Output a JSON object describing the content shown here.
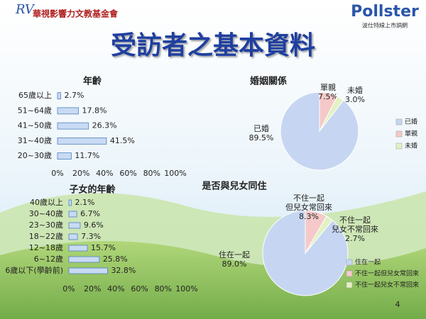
{
  "header": {
    "org_name": "華視影響力文教基金會",
    "brand": "Pollster",
    "brand_sub": "波仕特線上市調網",
    "title": "受訪者之基本資料",
    "page_number": "4"
  },
  "chart_data": [
    {
      "type": "hbar",
      "title": "年齡",
      "categories": [
        "65歲以上",
        "51~64歲",
        "41~50歲",
        "31~40歲",
        "20~30歲"
      ],
      "values": [
        2.7,
        17.8,
        26.3,
        41.5,
        11.7
      ],
      "value_labels": [
        "2.7%",
        "17.8%",
        "26.3%",
        "41.5%",
        "11.7%"
      ],
      "xlim": [
        0,
        100
      ],
      "xticks": [
        {
          "value": 0,
          "label": "0%"
        },
        {
          "value": 20,
          "label": "20%"
        },
        {
          "value": 40,
          "label": "40%"
        },
        {
          "value": 60,
          "label": "60%"
        },
        {
          "value": 80,
          "label": "80%"
        },
        {
          "value": 100,
          "label": "100%"
        }
      ],
      "color": "#c9daf4"
    },
    {
      "type": "hbar",
      "title": "子女的年齡",
      "categories": [
        "40歲以上",
        "30~40歲",
        "23~30歲",
        "18~22歲",
        "12~18歲",
        "6~12歲",
        "6歲以下(學齡前)"
      ],
      "values": [
        2.1,
        6.7,
        9.6,
        7.3,
        15.7,
        25.8,
        32.8
      ],
      "value_labels": [
        "2.1%",
        "6.7%",
        "9.6%",
        "7.3%",
        "15.7%",
        "25.8%",
        "32.8%"
      ],
      "xlim": [
        0,
        100
      ],
      "xticks": [
        {
          "value": 0,
          "label": "0%"
        },
        {
          "value": 20,
          "label": "20%"
        },
        {
          "value": 40,
          "label": "40%"
        },
        {
          "value": 60,
          "label": "60%"
        },
        {
          "value": 80,
          "label": "80%"
        },
        {
          "value": 100,
          "label": "100%"
        }
      ],
      "color": "#c9daf4"
    },
    {
      "type": "pie",
      "title": "婚姻關係",
      "categories": [
        "已婚",
        "單親",
        "未婚"
      ],
      "values": [
        89.5,
        7.5,
        3.0
      ],
      "value_labels": [
        "89.5%",
        "7.5%",
        "3.0%"
      ],
      "colors": [
        "#c6d6f2",
        "#f5c9c9",
        "#e3f1c4"
      ],
      "legend": "right"
    },
    {
      "type": "pie",
      "title": "是否與兒女同住",
      "categories": [
        "住在一起",
        "不住一起但兒女常回來",
        "不住一起兒女不常回來"
      ],
      "slice_labels": [
        [
          "住在一起"
        ],
        [
          "不住一起",
          "但兒女常回來"
        ],
        [
          "不住一起",
          "兒女不常回來"
        ]
      ],
      "values": [
        89.0,
        8.3,
        2.7
      ],
      "value_labels": [
        "89.0%",
        "8.3%",
        "2.7%"
      ],
      "colors": [
        "#c6d6f2",
        "#f5c9c9",
        "#e3f1c4"
      ],
      "legend": "right"
    }
  ]
}
